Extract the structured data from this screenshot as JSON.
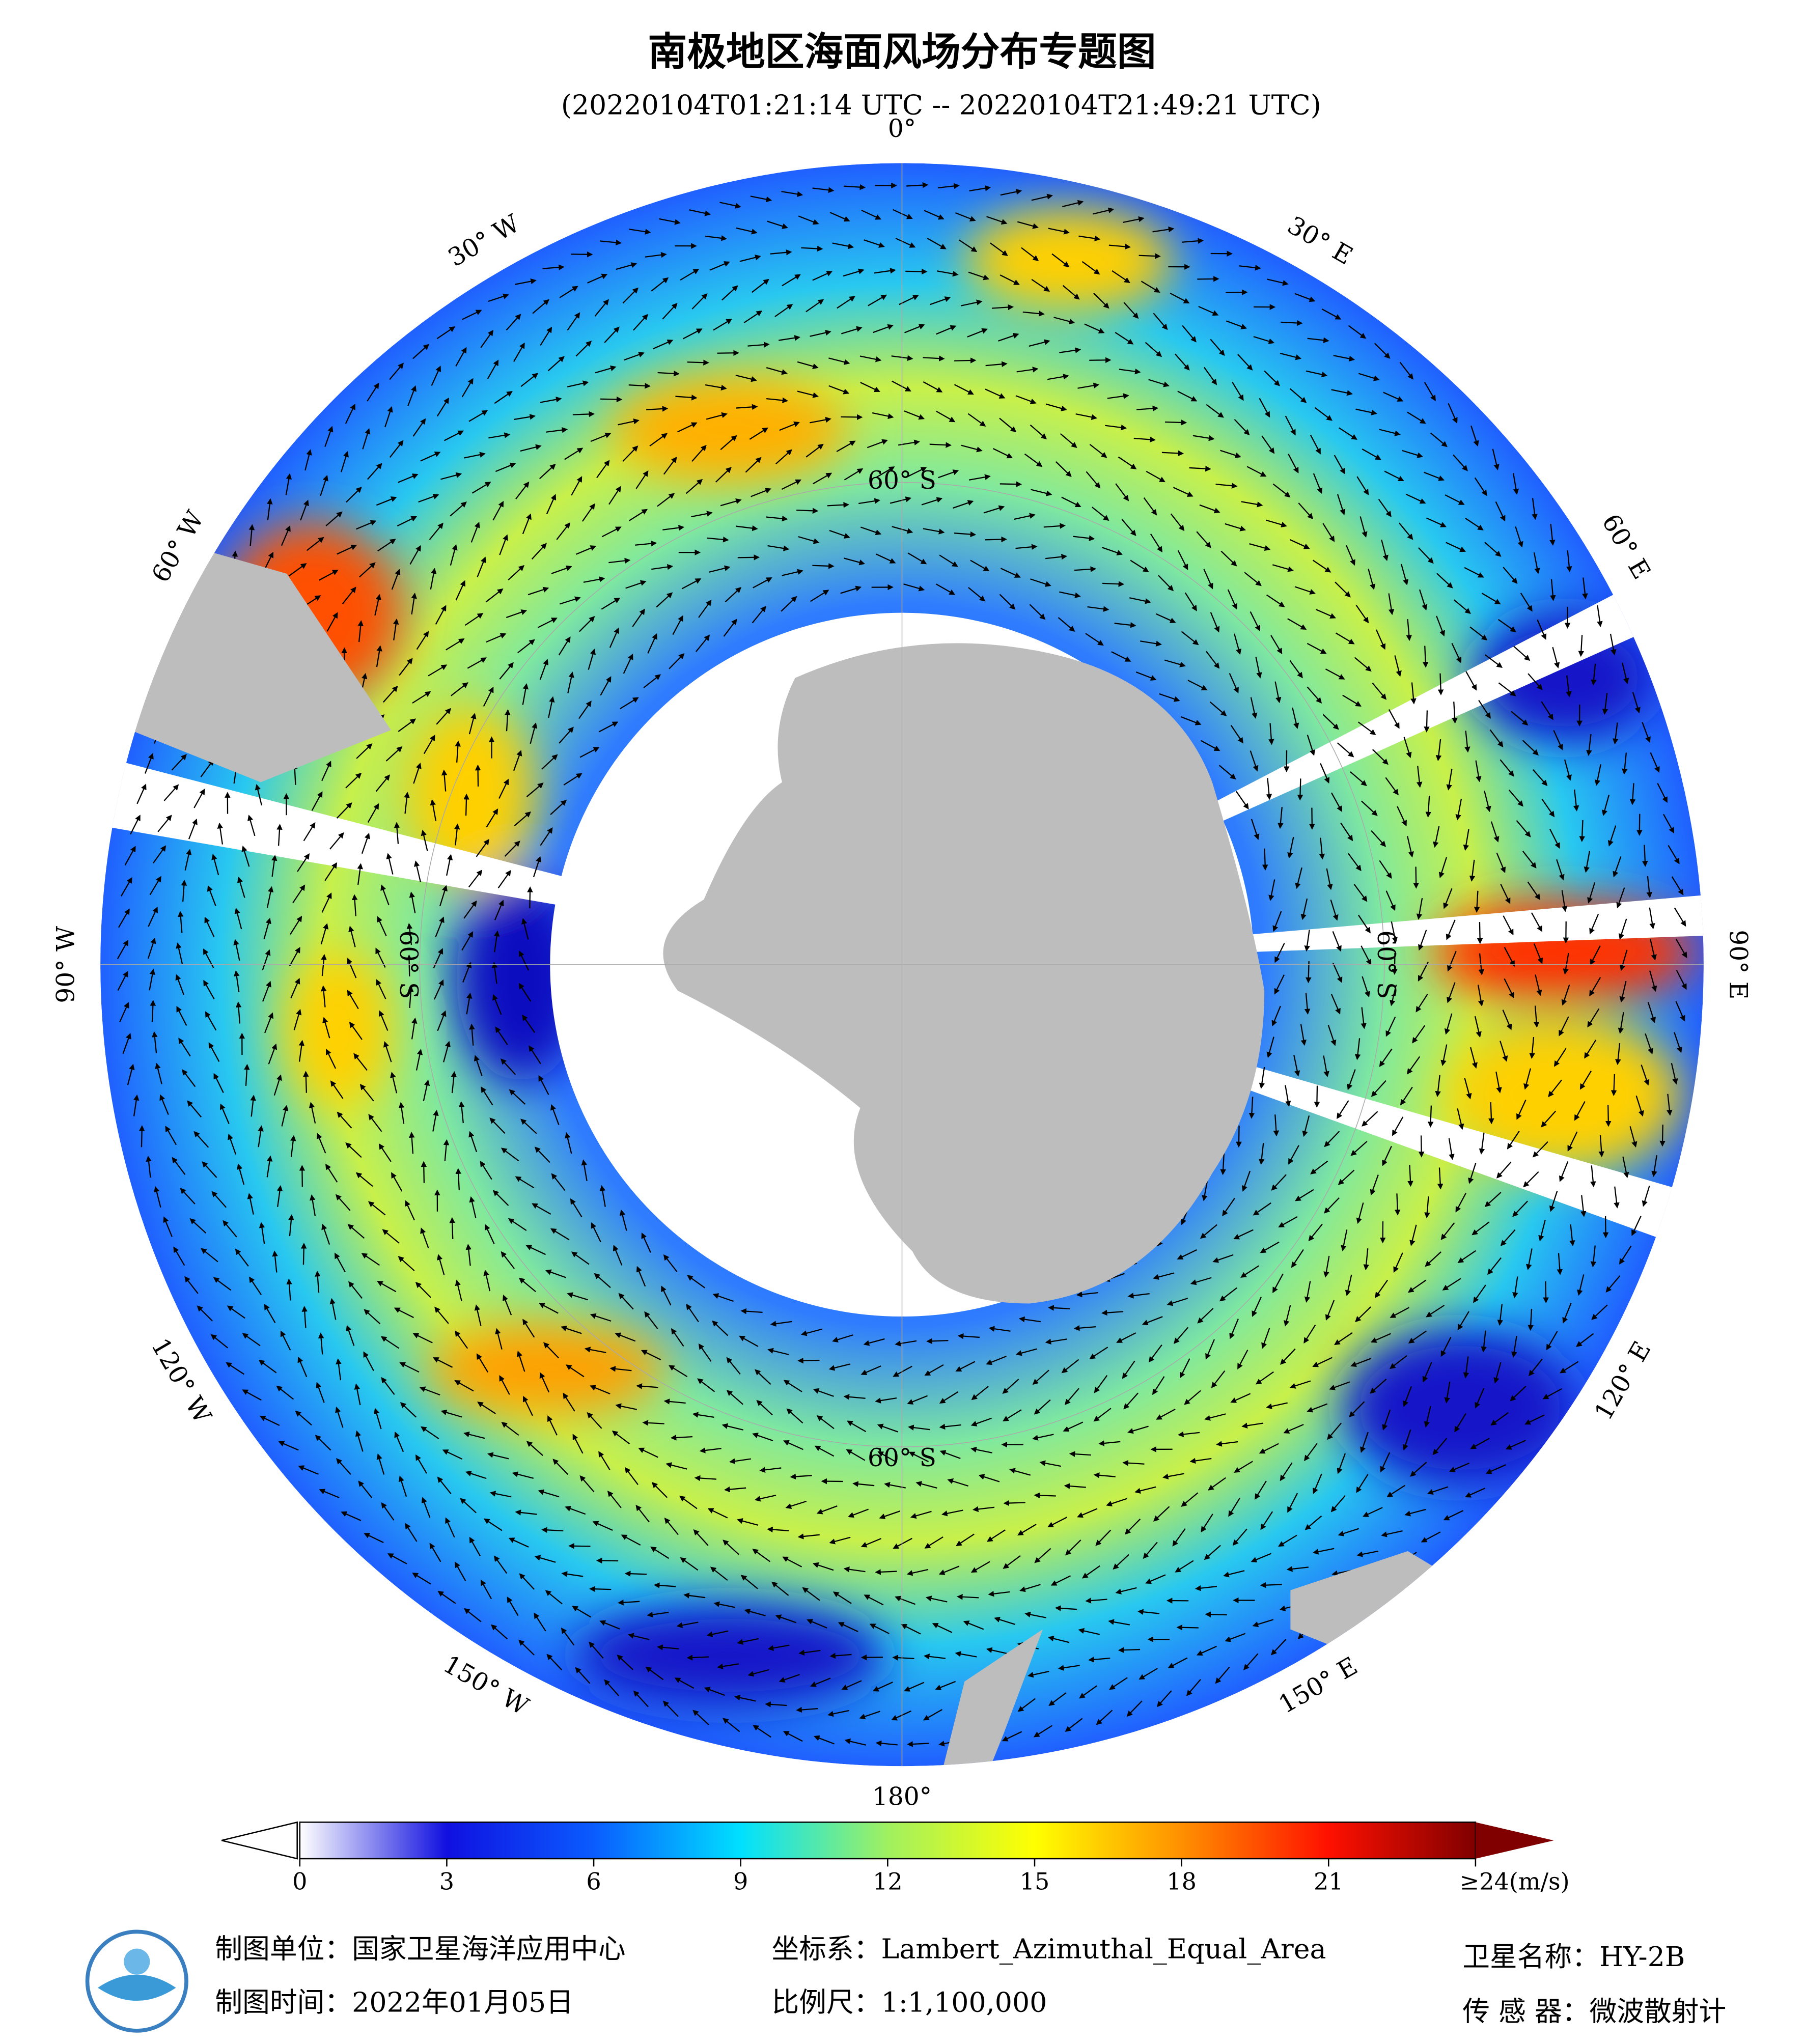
{
  "header": {
    "title": "南极地区海面风场分布专题图",
    "subtitle": "(20220104T01:21:14 UTC -- 20220104T21:49:21 UTC)"
  },
  "map": {
    "longitude_labels": [
      "0°",
      "30° E",
      "60° E",
      "90° E",
      "120° E",
      "150° E",
      "180°",
      "150° W",
      "120° W",
      "90° W",
      "60° W",
      "30° W"
    ],
    "latitude_labels": [
      "60° S",
      "60° S",
      "60° S",
      "60° S"
    ]
  },
  "colorbar": {
    "range": [
      0,
      24
    ],
    "ticks": [
      0,
      3,
      6,
      9,
      12,
      15,
      18,
      21,
      {
        "value": 24,
        "label": "≥24(m/s)"
      }
    ],
    "colors": [
      "#ffffff",
      "#1010e0",
      "#0a5cff",
      "#00e0ff",
      "#a0f060",
      "#ffff00",
      "#ff9000",
      "#ff1000",
      "#800000"
    ]
  },
  "footer": {
    "producer": "制图单位：国家卫星海洋应用中心",
    "date": "制图时间：2022年01月05日",
    "projection": "坐标系：Lambert_Azimuthal_Equal_Area",
    "scale": "比例尺：1:1,100,000",
    "satellite": "卫星名称：HY-2B",
    "sensor": "传 感 器：微波散射计"
  }
}
